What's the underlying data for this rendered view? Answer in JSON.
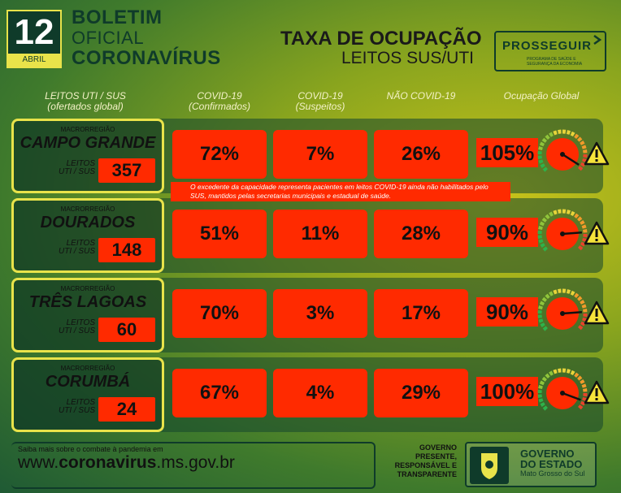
{
  "header": {
    "day": "12",
    "month": "ABRIL",
    "title1": "BOLETIM",
    "title2": "OFICIAL",
    "title3": "CORONAVÍRUS",
    "taxa1": "TAXA DE OCUPAÇÃO",
    "taxa2": "LEITOS SUS/UTI",
    "prosseguir": "PROSSEGUIR",
    "prosseguir_sub": "PROGRAMA DE SAÚDE E SEGURANÇA DA ECONOMIA"
  },
  "columns": {
    "leitos": "LEITOS UTI / SUS",
    "leitos_sub": "(ofertados global)",
    "confirmados": "COVID-19",
    "confirmados_sub": "(Confirmados)",
    "suspeitos": "COVID-19",
    "suspeitos_sub": "(Suspeitos)",
    "nao_covid": "NÃO COVID-19",
    "global": "Ocupação Global"
  },
  "rows": [
    {
      "macro": "MACRORREGIÃO",
      "name": "CAMPO GRANDE",
      "leitos_label1": "LEITOS",
      "leitos_label2": "UTI / SUS",
      "beds": "357",
      "confirmados": "72%",
      "suspeitos": "7%",
      "nao_covid": "26%",
      "global": "105%",
      "global_value": 105
    },
    {
      "macro": "MACRORREGIÃO",
      "name": "DOURADOS",
      "leitos_label1": "LEITOS",
      "leitos_label2": "UTI / SUS",
      "beds": "148",
      "confirmados": "51%",
      "suspeitos": "11%",
      "nao_covid": "28%",
      "global": "90%",
      "global_value": 90
    },
    {
      "macro": "MACRORREGIÃO",
      "name": "TRÊS LAGOAS",
      "leitos_label1": "LEITOS",
      "leitos_label2": "UTI / SUS",
      "beds": "60",
      "confirmados": "70%",
      "suspeitos": "3%",
      "nao_covid": "17%",
      "global": "90%",
      "global_value": 90
    },
    {
      "macro": "MACRORREGIÃO",
      "name": "CORUMBÁ",
      "leitos_label1": "LEITOS",
      "leitos_label2": "UTI / SUS",
      "beds": "24",
      "confirmados": "67%",
      "suspeitos": "4%",
      "nao_covid": "29%",
      "global": "100%",
      "global_value": 100
    }
  ],
  "note": "O excedente da capacidade representa pacientes em leitos COVID-19 ainda não habilitados pelo SUS, mantidos pelas secretarias municipais e estadual de saúde.",
  "footer": {
    "saiba": "Saiba mais sobre o combate à pandemia em",
    "url_prefix": "www.",
    "url_bold": "coronavirus",
    "url_suffix": ".ms.gov.br",
    "gp1": "GOVERNO",
    "gp2": "PRESENTE,",
    "gp3": "RESPONSÁVEL E",
    "gp4": "TRANSPARENTE",
    "gov1": "GOVERNO",
    "gov2": "DO ESTADO",
    "gov3": "Mato Grosso do Sul"
  },
  "colors": {
    "cell": "#ff2a00",
    "accent": "#e9e34a",
    "dark": "#0f3b2a"
  },
  "icons": {
    "gauge": "gauge-icon",
    "warning": "warning-icon",
    "crest": "state-crest-icon",
    "chevron": "chevron-right-icon"
  }
}
